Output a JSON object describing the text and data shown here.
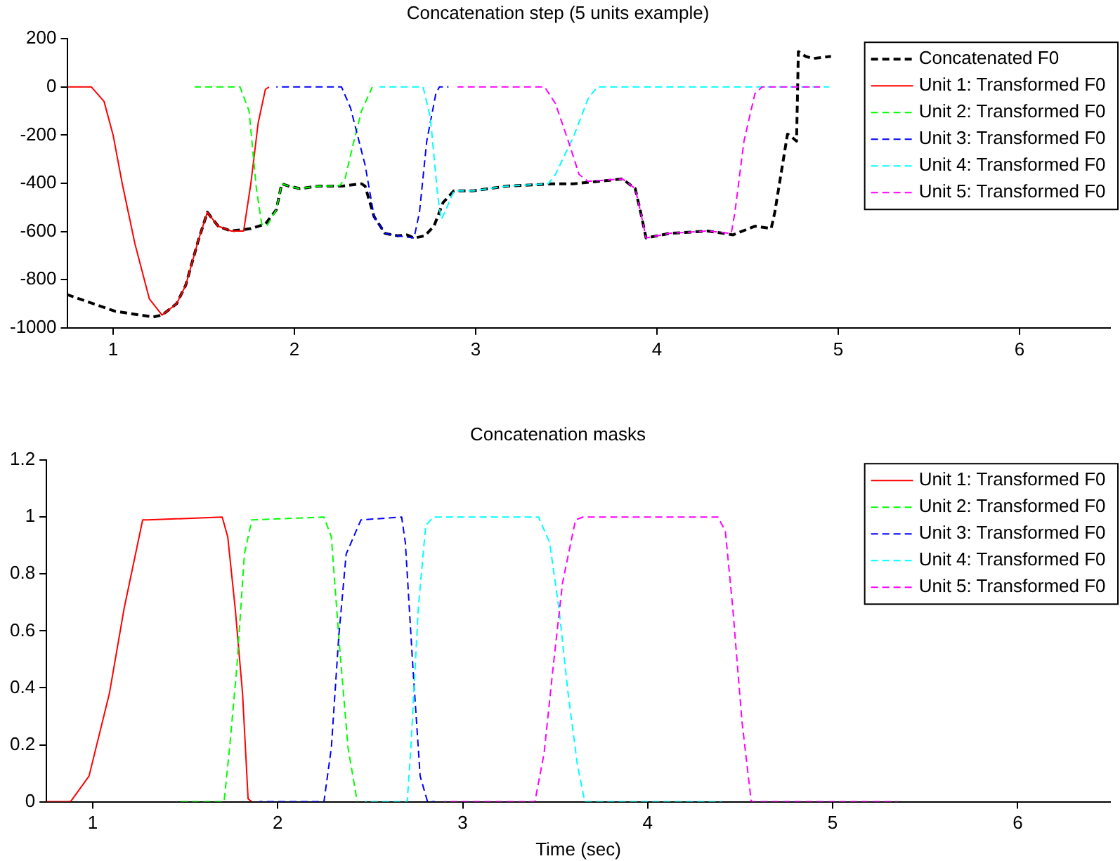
{
  "chart_data": [
    {
      "type": "line",
      "title": "Concatenation step (5 units example)",
      "xlim": [
        0.75,
        6.5
      ],
      "xticks": [
        1,
        2,
        3,
        4,
        5,
        6
      ],
      "ylim": [
        -1000,
        200
      ],
      "yticks": [
        -1000,
        -800,
        -600,
        -400,
        -200,
        0,
        200
      ],
      "grid": false,
      "legend": "top right",
      "marker": "none",
      "series": [
        {
          "name": "Concatenated F0",
          "color": "#000000",
          "line_style": "dashed",
          "x": [
            0.75,
            1.01,
            1.22,
            1.27,
            1.35,
            1.4,
            1.47,
            1.52,
            1.54,
            1.58,
            1.65,
            1.76,
            1.84,
            1.9,
            1.93,
            1.97,
            2.03,
            2.13,
            2.26,
            2.37,
            2.39,
            2.44,
            2.5,
            2.57,
            2.62,
            2.66,
            2.72,
            2.77,
            2.82,
            2.88,
            2.99,
            3.17,
            3.43,
            3.54,
            3.81,
            3.88,
            3.91,
            3.94,
            4.07,
            4.28,
            4.42,
            4.54,
            4.63,
            4.65,
            4.72,
            4.74,
            4.77,
            4.78,
            4.82,
            4.86,
            4.96
          ],
          "values": [
            -863,
            -931,
            -955,
            -947,
            -900,
            -824,
            -637,
            -520,
            -540,
            -578,
            -598,
            -588,
            -569,
            -510,
            -402,
            -412,
            -422,
            -412,
            -412,
            -402,
            -412,
            -539,
            -608,
            -618,
            -614,
            -627,
            -618,
            -578,
            -480,
            -431,
            -431,
            -412,
            -402,
            -402,
            -382,
            -422,
            -520,
            -627,
            -608,
            -598,
            -614,
            -578,
            -588,
            -520,
            -196,
            -206,
            -225,
            147,
            127,
            118,
            127
          ]
        },
        {
          "name": "Unit 1: Transformed F0",
          "color": "#ff0000",
          "line_style": "solid",
          "x": [
            0.75,
            0.88,
            0.95,
            1.0,
            1.05,
            1.12,
            1.2,
            1.27,
            1.35,
            1.4,
            1.47,
            1.52,
            1.54,
            1.58,
            1.65,
            1.72,
            1.76,
            1.8,
            1.84,
            1.86
          ],
          "values": [
            0,
            0,
            -60,
            -200,
            -400,
            -650,
            -880,
            -947,
            -900,
            -824,
            -637,
            -520,
            -540,
            -578,
            -598,
            -598,
            -400,
            -150,
            -10,
            0
          ]
        },
        {
          "name": "Unit 2: Transformed F0",
          "color": "#00ff00",
          "line_style": "dashed",
          "x": [
            1.45,
            1.7,
            1.75,
            1.79,
            1.82,
            1.85,
            1.9,
            1.93,
            1.97,
            2.03,
            2.13,
            2.25,
            2.28,
            2.32,
            2.37,
            2.43
          ],
          "values": [
            0,
            0,
            -100,
            -420,
            -570,
            -575,
            -510,
            -402,
            -412,
            -422,
            -412,
            -410,
            -380,
            -250,
            -100,
            0
          ]
        },
        {
          "name": "Unit 3: Transformed F0",
          "color": "#0000ff",
          "line_style": "dashed",
          "x": [
            1.9,
            2.26,
            2.31,
            2.39,
            2.44,
            2.5,
            2.57,
            2.66,
            2.69,
            2.73,
            2.78,
            2.8,
            2.85
          ],
          "values": [
            0,
            0,
            -88,
            -324,
            -539,
            -608,
            -618,
            -627,
            -520,
            -225,
            -29,
            0,
            0
          ]
        },
        {
          "name": "Unit 4: Transformed F0",
          "color": "#00ffff",
          "line_style": "dashed",
          "x": [
            2.47,
            2.71,
            2.75,
            2.79,
            2.81,
            2.83,
            2.88,
            2.99,
            3.17,
            3.4,
            3.44,
            3.54,
            3.62,
            3.67,
            4.95
          ],
          "values": [
            0,
            0,
            -127,
            -450,
            -550,
            -520,
            -431,
            -431,
            -412,
            -402,
            -363,
            -206,
            -49,
            0,
            0
          ]
        },
        {
          "name": "Unit 5: Transformed F0",
          "color": "#ff00ff",
          "line_style": "dashed",
          "x": [
            2.9,
            3.38,
            3.44,
            3.52,
            3.57,
            3.62,
            3.81,
            3.88,
            3.91,
            3.94,
            4.07,
            4.28,
            4.41,
            4.43,
            4.48,
            4.54,
            4.58,
            4.9
          ],
          "values": [
            0,
            0,
            -69,
            -245,
            -363,
            -392,
            -382,
            -422,
            -520,
            -627,
            -608,
            -598,
            -608,
            -520,
            -225,
            -29,
            0,
            0
          ]
        }
      ]
    },
    {
      "type": "line",
      "title": "Concatenation masks",
      "xlabel": "Time (sec)",
      "xlim": [
        0.75,
        6.5
      ],
      "xticks": [
        1,
        2,
        3,
        4,
        5,
        6
      ],
      "ylim": [
        0,
        1.2
      ],
      "yticks": [
        0,
        0.2,
        0.4,
        0.6,
        0.8,
        1,
        1.2
      ],
      "grid": false,
      "legend": "top right",
      "marker": "none",
      "series": [
        {
          "name": "Unit 1: Transformed F0",
          "color": "#ff0000",
          "line_style": "solid",
          "x": [
            0.75,
            0.88,
            0.98,
            1.09,
            1.17,
            1.27,
            1.3,
            1.7,
            1.73,
            1.77,
            1.81,
            1.84,
            1.86
          ],
          "values": [
            0,
            0,
            0.09,
            0.38,
            0.68,
            0.99,
            0.99,
            1,
            0.93,
            0.68,
            0.38,
            0.01,
            0
          ]
        },
        {
          "name": "Unit 2: Transformed F0",
          "color": "#00ff00",
          "line_style": "dashed",
          "x": [
            1.45,
            1.71,
            1.74,
            1.78,
            1.82,
            1.86,
            2.25,
            2.29,
            2.33,
            2.38,
            2.43
          ],
          "values": [
            0,
            0,
            0.19,
            0.48,
            0.87,
            0.99,
            1,
            0.93,
            0.58,
            0.19,
            0
          ]
        },
        {
          "name": "Unit 3: Transformed F0",
          "color": "#0000ff",
          "line_style": "dashed",
          "x": [
            1.9,
            2.25,
            2.29,
            2.33,
            2.37,
            2.45,
            2.67,
            2.69,
            2.73,
            2.77,
            2.81,
            2.85
          ],
          "values": [
            0,
            0,
            0.19,
            0.58,
            0.87,
            0.99,
            1,
            0.91,
            0.48,
            0.09,
            0,
            0
          ]
        },
        {
          "name": "Unit 4: Transformed F0",
          "color": "#00ffff",
          "line_style": "dashed",
          "x": [
            2.47,
            2.7,
            2.72,
            2.76,
            2.8,
            2.84,
            3.41,
            3.47,
            3.52,
            3.57,
            3.62,
            3.66,
            4.4
          ],
          "values": [
            0,
            0,
            0.19,
            0.68,
            0.97,
            1,
            1,
            0.91,
            0.68,
            0.38,
            0.13,
            0,
            0
          ]
        },
        {
          "name": "Unit 5: Transformed F0",
          "color": "#ff00ff",
          "line_style": "dashed",
          "x": [
            2.9,
            3.39,
            3.44,
            3.49,
            3.54,
            3.61,
            3.65,
            4.38,
            4.42,
            4.46,
            4.51,
            4.56,
            5.35
          ],
          "values": [
            0,
            0,
            0.17,
            0.48,
            0.77,
            0.99,
            1,
            1,
            0.95,
            0.68,
            0.28,
            0,
            0
          ]
        }
      ]
    }
  ]
}
